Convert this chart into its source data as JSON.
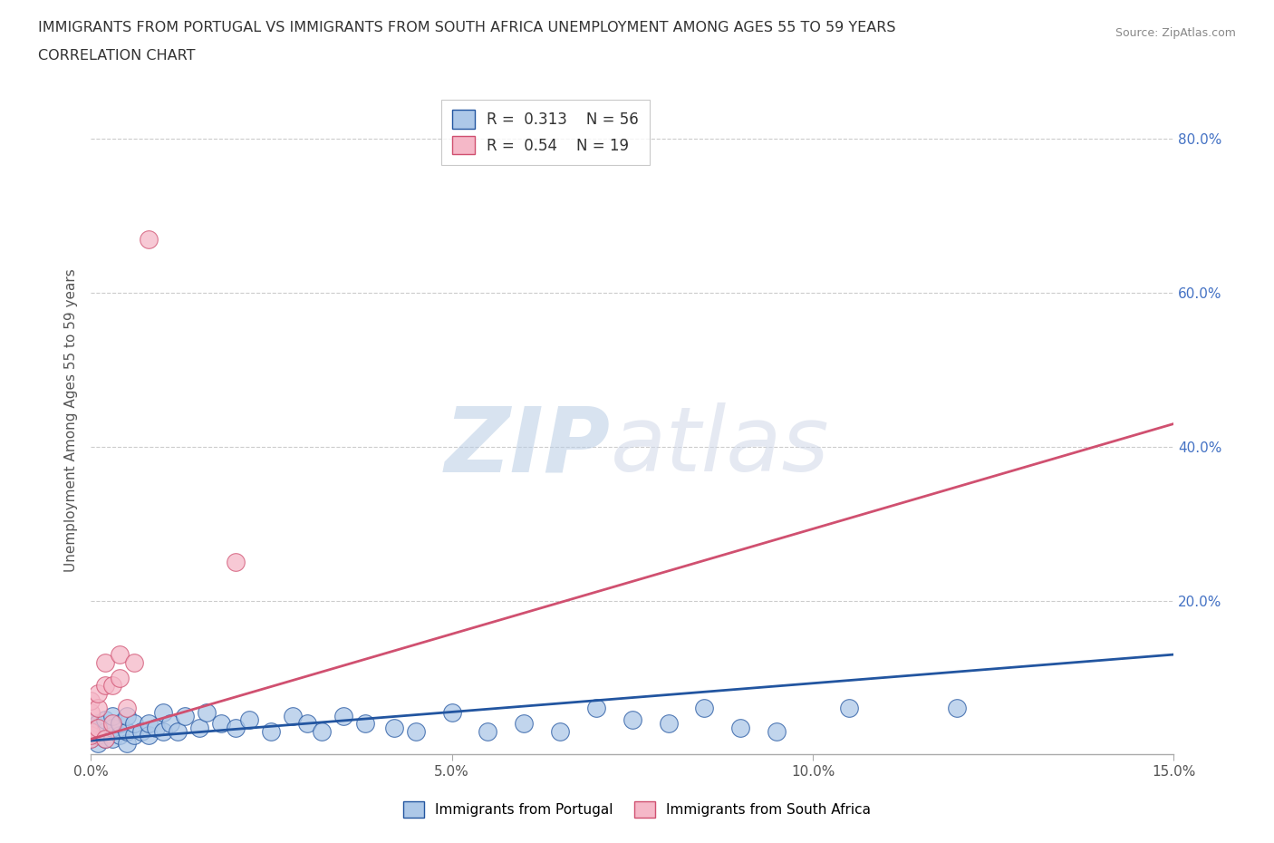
{
  "title_line1": "IMMIGRANTS FROM PORTUGAL VS IMMIGRANTS FROM SOUTH AFRICA UNEMPLOYMENT AMONG AGES 55 TO 59 YEARS",
  "title_line2": "CORRELATION CHART",
  "source_text": "Source: ZipAtlas.com",
  "ylabel": "Unemployment Among Ages 55 to 59 years",
  "xlim": [
    0.0,
    0.15
  ],
  "ylim": [
    0.0,
    0.87
  ],
  "xtick_labels": [
    "0.0%",
    "5.0%",
    "10.0%",
    "15.0%"
  ],
  "xtick_values": [
    0.0,
    0.05,
    0.1,
    0.15
  ],
  "right_ytick_labels": [
    "20.0%",
    "40.0%",
    "60.0%",
    "80.0%"
  ],
  "right_ytick_values": [
    0.2,
    0.4,
    0.6,
    0.8
  ],
  "portugal_color": "#adc8e8",
  "south_africa_color": "#f5b8c8",
  "portugal_line_color": "#2255a0",
  "south_africa_line_color": "#d05070",
  "portugal_R": 0.313,
  "portugal_N": 56,
  "south_africa_R": 0.54,
  "south_africa_N": 19,
  "background_color": "#ffffff",
  "grid_color": "#cccccc",
  "portugal_scatter_x": [
    0.0,
    0.0,
    0.0,
    0.0,
    0.0,
    0.001,
    0.001,
    0.001,
    0.001,
    0.002,
    0.002,
    0.002,
    0.003,
    0.003,
    0.003,
    0.004,
    0.004,
    0.005,
    0.005,
    0.005,
    0.006,
    0.006,
    0.007,
    0.008,
    0.008,
    0.009,
    0.01,
    0.01,
    0.011,
    0.012,
    0.013,
    0.015,
    0.016,
    0.018,
    0.02,
    0.022,
    0.025,
    0.028,
    0.03,
    0.032,
    0.035,
    0.038,
    0.042,
    0.045,
    0.05,
    0.055,
    0.06,
    0.065,
    0.07,
    0.075,
    0.08,
    0.085,
    0.09,
    0.095,
    0.105,
    0.12
  ],
  "portugal_scatter_y": [
    0.02,
    0.025,
    0.03,
    0.035,
    0.04,
    0.015,
    0.025,
    0.03,
    0.04,
    0.02,
    0.03,
    0.045,
    0.02,
    0.035,
    0.05,
    0.025,
    0.04,
    0.015,
    0.03,
    0.05,
    0.025,
    0.04,
    0.03,
    0.025,
    0.04,
    0.035,
    0.03,
    0.055,
    0.04,
    0.03,
    0.05,
    0.035,
    0.055,
    0.04,
    0.035,
    0.045,
    0.03,
    0.05,
    0.04,
    0.03,
    0.05,
    0.04,
    0.035,
    0.03,
    0.055,
    0.03,
    0.04,
    0.03,
    0.06,
    0.045,
    0.04,
    0.06,
    0.035,
    0.03,
    0.06,
    0.06
  ],
  "sa_scatter_x": [
    0.0,
    0.0,
    0.0,
    0.0,
    0.0,
    0.001,
    0.001,
    0.001,
    0.002,
    0.002,
    0.002,
    0.003,
    0.003,
    0.004,
    0.004,
    0.005,
    0.006,
    0.008,
    0.02
  ],
  "sa_scatter_y": [
    0.02,
    0.025,
    0.03,
    0.055,
    0.07,
    0.035,
    0.06,
    0.08,
    0.02,
    0.09,
    0.12,
    0.04,
    0.09,
    0.1,
    0.13,
    0.06,
    0.12,
    0.67,
    0.25
  ],
  "sa_line_x0": 0.0,
  "sa_line_y0": 0.02,
  "sa_line_x1": 0.15,
  "sa_line_y1": 0.43,
  "port_line_x0": 0.0,
  "port_line_y0": 0.018,
  "port_line_x1": 0.15,
  "port_line_y1": 0.13
}
